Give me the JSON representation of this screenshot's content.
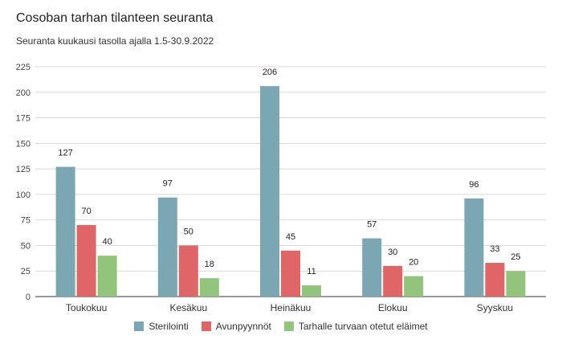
{
  "chart_data": {
    "type": "bar",
    "title": "Cosoban tarhan tilanteen seuranta",
    "subtitle": "Seuranta kuukausi tasolla ajalla 1.5-30.9.2022",
    "categories": [
      "Toukokuu",
      "Kesäkuu",
      "Heinäkuu",
      "Elokuu",
      "Syyskuu"
    ],
    "series": [
      {
        "name": "Sterilointi",
        "values": [
          127,
          97,
          206,
          57,
          96
        ],
        "color": "#7ba7b3"
      },
      {
        "name": "Avunpyynnöt",
        "values": [
          70,
          50,
          45,
          30,
          33
        ],
        "color": "#e06566"
      },
      {
        "name": "Tarhalle turvaan otetut eläimet",
        "values": [
          40,
          18,
          11,
          20,
          25
        ],
        "color": "#92c47c"
      }
    ],
    "ylim": [
      0,
      225
    ],
    "yticks": [
      0,
      25,
      50,
      75,
      100,
      125,
      150,
      175,
      200,
      225
    ],
    "grid": true,
    "legend_position": "bottom"
  }
}
